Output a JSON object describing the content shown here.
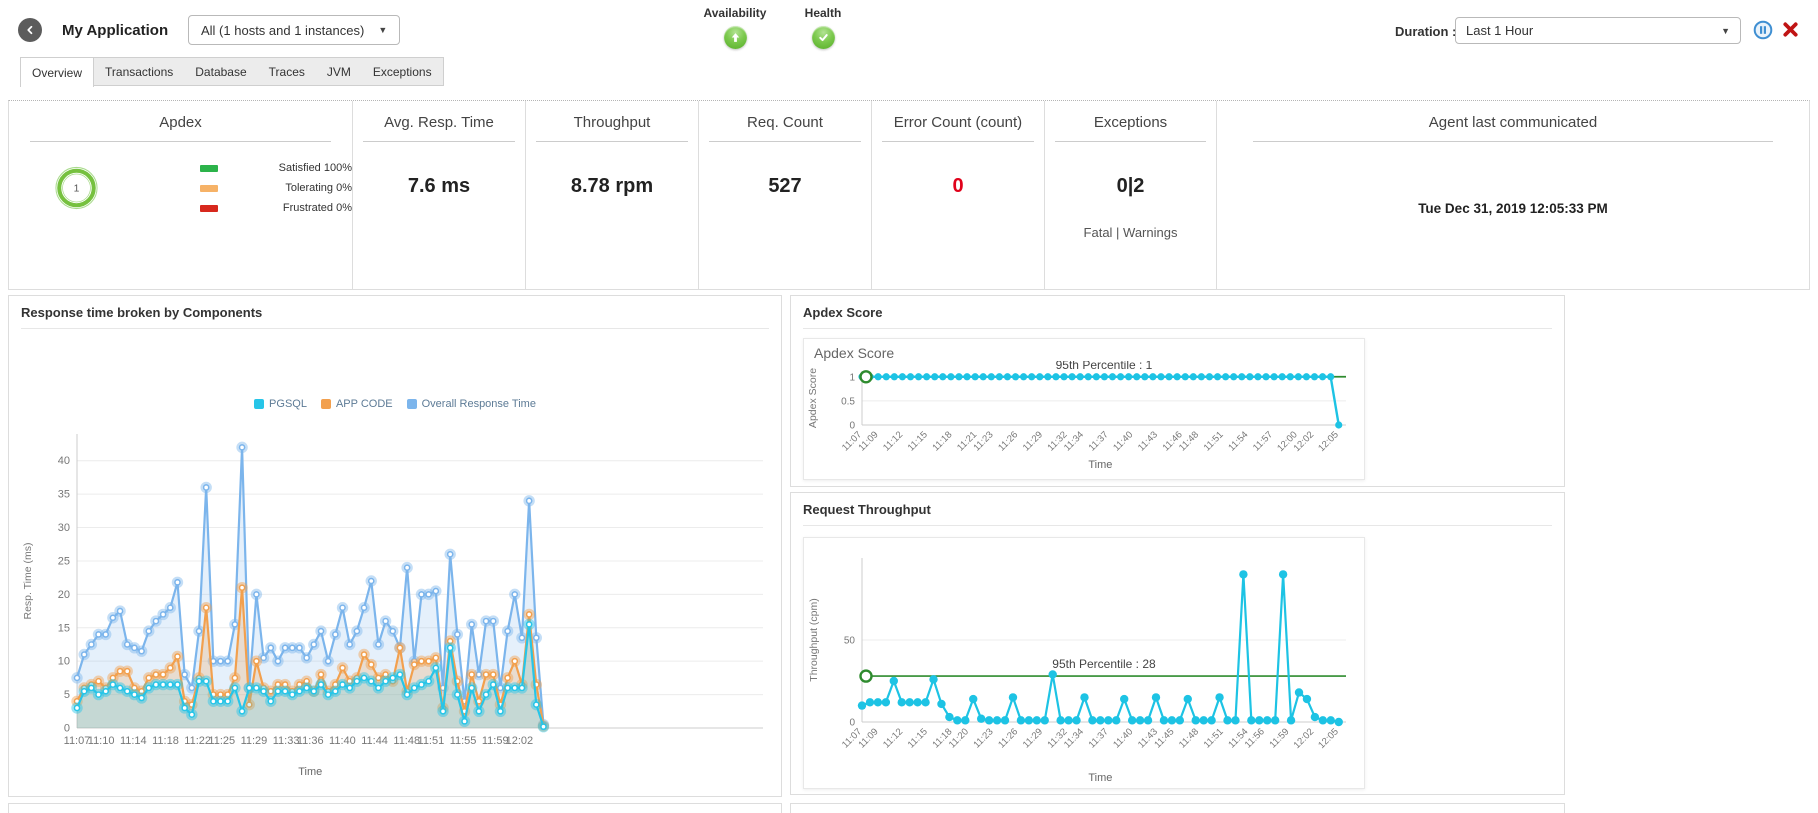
{
  "header": {
    "app_title": "My Application",
    "scope_dropdown": "All (1 hosts and 1 instances)",
    "availability_label": "Availability",
    "health_label": "Health",
    "duration_label": "Duration :",
    "duration_value": "Last 1 Hour"
  },
  "tabs": [
    "Overview",
    "Transactions",
    "Database",
    "Traces",
    "JVM",
    "Exceptions"
  ],
  "metrics": {
    "apdex": {
      "title": "Apdex",
      "score": "1",
      "ring_color": "#76c13f",
      "legend": [
        {
          "label": "Satisfied 100%",
          "color": "#2cb34a"
        },
        {
          "label": "Tolerating 0%",
          "color": "#f6b267"
        },
        {
          "label": "Frustrated 0%",
          "color": "#d7281d"
        }
      ]
    },
    "avg_resp_time": {
      "title": "Avg. Resp. Time",
      "value": "7.6 ms"
    },
    "throughput": {
      "title": "Throughput",
      "value": "8.78 rpm"
    },
    "req_count": {
      "title": "Req. Count",
      "value": "527"
    },
    "error_count": {
      "title": "Error Count (count)",
      "value": "0",
      "value_color": "#e0021b"
    },
    "exceptions": {
      "title": "Exceptions",
      "value": "0|2",
      "sub": "Fatal | Warnings"
    },
    "agent": {
      "title": "Agent last communicated",
      "value": "Tue Dec 31, 2019 12:05:33 PM"
    }
  },
  "panels": {
    "response_components": {
      "title": "Response time broken by Components"
    },
    "apdex_score": {
      "title": "Apdex Score"
    },
    "request_throughput": {
      "title": "Request Throughput"
    }
  },
  "chart_data": [
    {
      "name": "response_components",
      "type": "area",
      "title": "Response time broken by Components",
      "xlabel": "Time",
      "ylabel": "Resp. Time (ms)",
      "ylim": [
        0,
        44
      ],
      "yticks": [
        0,
        5,
        10,
        15,
        20,
        25,
        30,
        35,
        40
      ],
      "grid": true,
      "legend_position": "top-center",
      "x_start": "11:07",
      "x_span_minutes": 58,
      "x_ticks": [
        "11:07",
        "11:10",
        "11:14",
        "11:18",
        "11:22",
        "11:25",
        "11:29",
        "11:33",
        "11:36",
        "11:40",
        "11:44",
        "11:48",
        "11:51",
        "11:55",
        "11:59",
        "12:02"
      ],
      "legend_order": [
        "PGSQL",
        "APP CODE",
        "Overall Response Time"
      ],
      "series": [
        {
          "name": "Overall Response Time",
          "color": "#7cb5ec",
          "fill": "rgba(124,181,236,0.20)",
          "marker": "donut",
          "values": [
            7.5,
            11,
            12.5,
            14,
            14,
            16.5,
            17.5,
            12.5,
            12,
            11.5,
            14.5,
            16,
            17,
            18,
            21.8,
            8,
            6,
            14.5,
            36,
            10,
            10,
            10,
            15.5,
            42,
            6,
            20,
            10.5,
            12,
            10,
            12,
            12,
            12,
            10.5,
            12.5,
            14.5,
            10,
            14,
            18,
            12.5,
            14.5,
            18,
            22,
            12.5,
            16,
            14.5,
            12,
            24,
            10,
            20,
            20,
            20.5,
            6,
            26,
            14,
            4,
            15.5,
            8,
            16,
            16,
            6,
            14.5,
            20,
            13.5,
            34,
            13.5,
            0.5
          ]
        },
        {
          "name": "APP CODE",
          "color": "#f2a04e",
          "fill": "rgba(242,160,78,0.25)",
          "marker": "donut",
          "values": [
            4,
            6,
            6.5,
            7,
            6,
            7.5,
            8.5,
            8.5,
            6,
            5.5,
            7.5,
            8,
            8,
            9,
            10.7,
            4,
            3.5,
            7.5,
            18,
            5,
            5,
            5,
            7.5,
            21,
            3.5,
            10,
            6,
            5.5,
            6.5,
            6.5,
            5.5,
            6.5,
            7,
            5.5,
            8,
            5.5,
            6.5,
            9,
            7,
            7.5,
            11,
            9.5,
            7.5,
            8,
            7,
            12,
            5.5,
            9.5,
            10,
            10,
            10.5,
            3,
            13,
            7,
            2.5,
            8,
            4,
            8,
            8,
            3.5,
            7.5,
            10,
            6.5,
            17,
            6.5,
            0.3
          ]
        },
        {
          "name": "PGSQL",
          "color": "#27c5e8",
          "fill": "rgba(39,197,232,0.18)",
          "marker": "donut",
          "values": [
            3,
            5.5,
            6,
            5,
            5.5,
            6.5,
            6,
            5.5,
            5,
            4.5,
            6,
            6.5,
            6.5,
            6.5,
            6.5,
            3,
            2,
            7,
            7,
            4,
            4,
            4,
            6,
            2.5,
            6,
            6,
            5.5,
            4,
            5.5,
            5.5,
            5,
            5.5,
            6,
            5.5,
            6.5,
            5,
            5.5,
            6.5,
            6,
            7,
            7.5,
            7,
            6,
            7,
            7.5,
            8,
            5,
            6,
            6.5,
            7,
            9,
            2.5,
            12,
            5,
            1,
            6,
            2.5,
            5,
            6.5,
            2.5,
            6,
            6,
            6,
            15.5,
            3.5,
            0.2
          ]
        }
      ]
    },
    {
      "name": "apdex_score",
      "type": "line",
      "title": "Apdex Score",
      "xlabel": "Time",
      "ylabel": "Apdex Score",
      "ylim": [
        0,
        1.12
      ],
      "yticks": [
        0,
        0.5,
        1
      ],
      "grid": true,
      "x_start": "11:07",
      "x_span_minutes": 58,
      "x_ticks": [
        "11:07",
        "11:09",
        "11:12",
        "11:15",
        "11:18",
        "11:21",
        "11:23",
        "11:26",
        "11:29",
        "11:32",
        "11:34",
        "11:37",
        "11:40",
        "11:43",
        "11:46",
        "11:48",
        "11:51",
        "11:54",
        "11:57",
        "12:00",
        "12:02",
        "12:05"
      ],
      "percentile": {
        "value": 1,
        "label": "95th Percentile : 1",
        "color": "#2e8b2e"
      },
      "series": [
        {
          "name": "Apdex Score",
          "color": "#1dc3e4",
          "marker": "dot",
          "values": [
            1,
            1,
            1,
            1,
            1,
            1,
            1,
            1,
            1,
            1,
            1,
            1,
            1,
            1,
            1,
            1,
            1,
            1,
            1,
            1,
            1,
            1,
            1,
            1,
            1,
            1,
            1,
            1,
            1,
            1,
            1,
            1,
            1,
            1,
            1,
            1,
            1,
            1,
            1,
            1,
            1,
            1,
            1,
            1,
            1,
            1,
            1,
            1,
            1,
            1,
            1,
            1,
            1,
            1,
            1,
            1,
            1,
            1,
            1,
            0
          ]
        }
      ]
    },
    {
      "name": "request_throughput",
      "type": "line",
      "title": "Request Throughput",
      "xlabel": "Time",
      "ylabel": "Throughput (cpm)",
      "ylim": [
        0,
        100
      ],
      "yticks": [
        0,
        50
      ],
      "grid": true,
      "x_start": "11:07",
      "x_span_minutes": 58,
      "x_ticks": [
        "11:07",
        "11:09",
        "11:12",
        "11:15",
        "11:18",
        "11:20",
        "11:23",
        "11:26",
        "11:29",
        "11:32",
        "11:34",
        "11:37",
        "11:40",
        "11:43",
        "11:45",
        "11:48",
        "11:51",
        "11:54",
        "11:56",
        "11:59",
        "12:02",
        "12:05"
      ],
      "percentile": {
        "value": 28,
        "label": "95th Percentile : 28",
        "color": "#2e8b2e"
      },
      "series": [
        {
          "name": "Request Throughput",
          "color": "#1dc3e4",
          "marker": "dot",
          "values": [
            10,
            12,
            12,
            12,
            25,
            12,
            12,
            12,
            12,
            26,
            11,
            3,
            1,
            1,
            14,
            2,
            1,
            1,
            1,
            15,
            1,
            1,
            1,
            1,
            29,
            1,
            1,
            1,
            15,
            1,
            1,
            1,
            1,
            14,
            1,
            1,
            1,
            15,
            1,
            1,
            1,
            14,
            1,
            1,
            1,
            15,
            1,
            1,
            90,
            1,
            1,
            1,
            1,
            90,
            1,
            18,
            14,
            3,
            1,
            1,
            0
          ]
        }
      ]
    }
  ]
}
